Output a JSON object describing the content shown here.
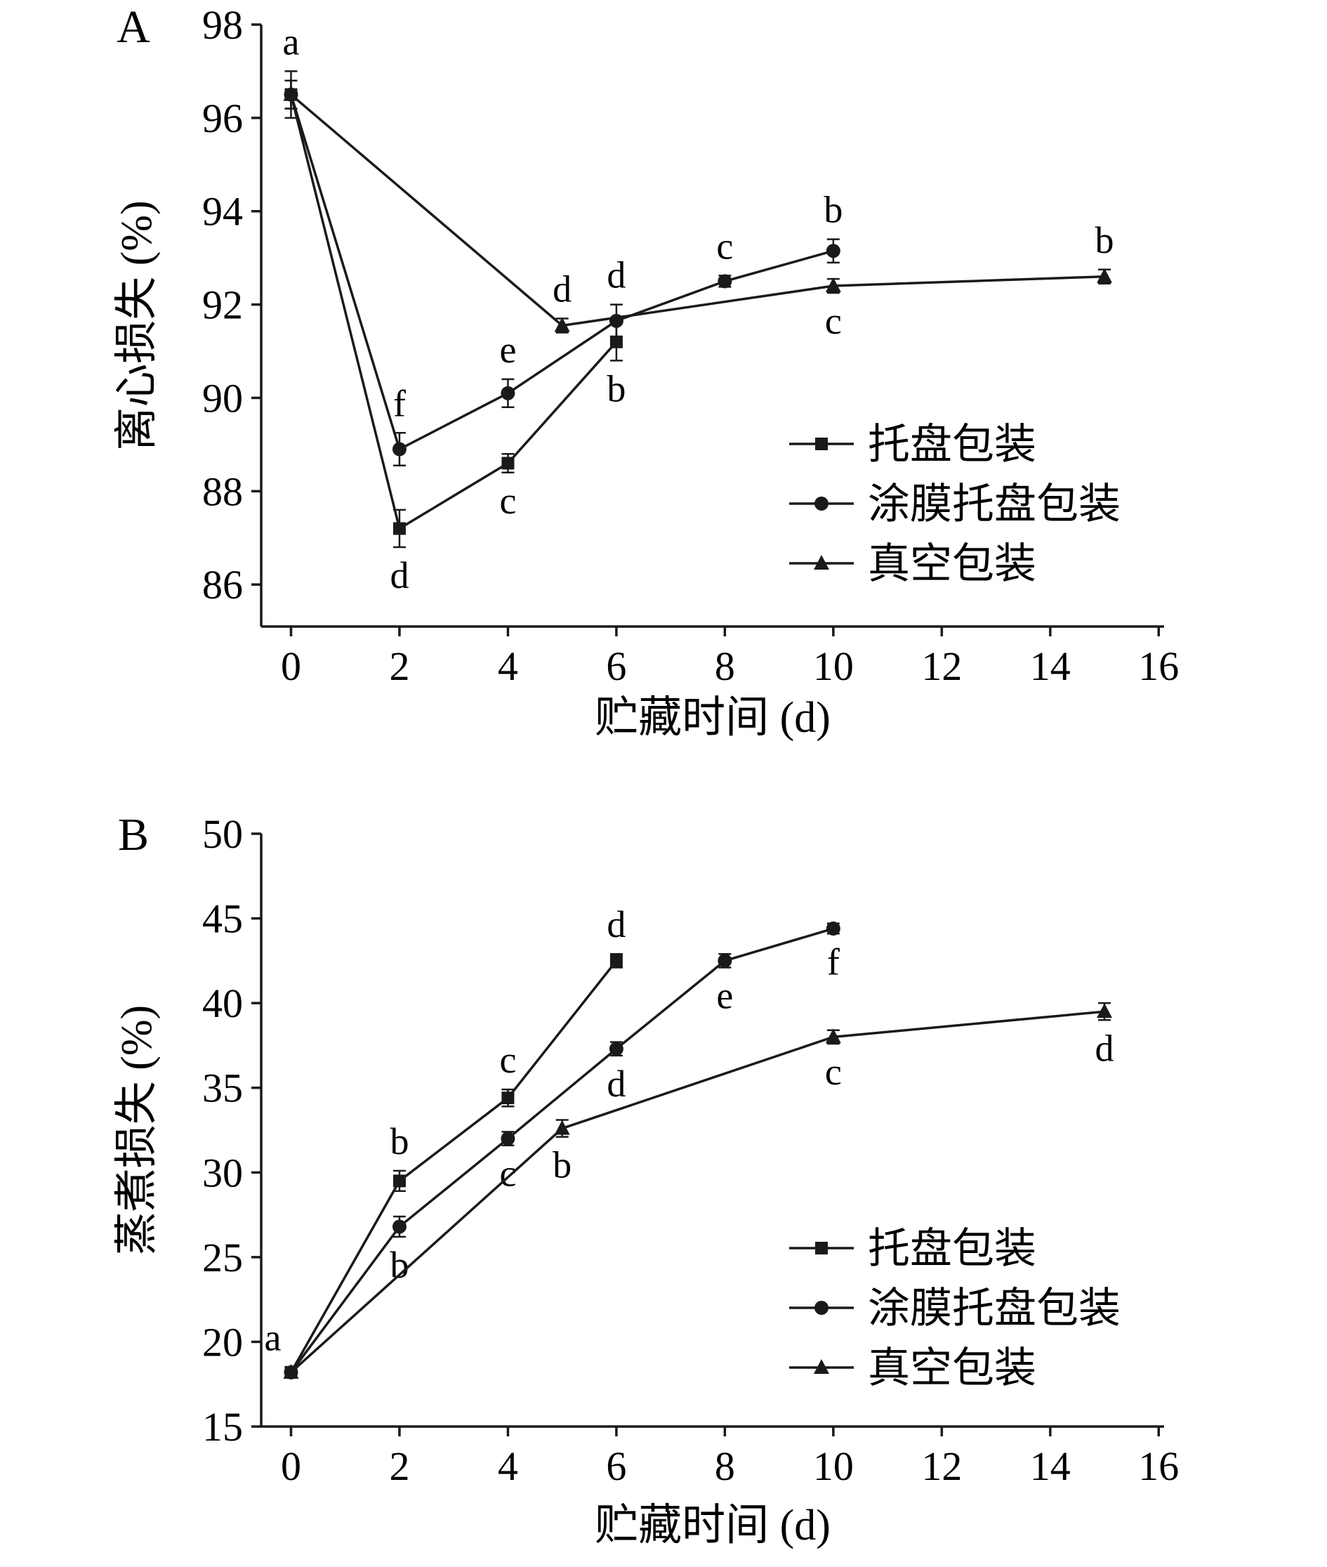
{
  "figure": {
    "background": "#ffffff",
    "ink": "#1a1a1a"
  },
  "chart_data": [
    {
      "type": "line",
      "panel_label": "A",
      "xlabel": "贮藏时间 (d)",
      "ylabel": "离心损失 (%)",
      "xticks": [
        0,
        2,
        4,
        6,
        8,
        10,
        12,
        14,
        16
      ],
      "yticks": [
        86,
        88,
        90,
        92,
        94,
        96,
        98
      ],
      "xlim": [
        -0.55,
        16.1
      ],
      "ylim": [
        85.1,
        98
      ],
      "grid": false,
      "legend_position": "inside-center-right",
      "series": [
        {
          "name": "托盘包装",
          "marker": "square",
          "points": [
            {
              "x": 0,
              "y": 96.5,
              "err": 0.5,
              "label": "a",
              "label_pos": "above"
            },
            {
              "x": 2,
              "y": 87.2,
              "err": 0.4,
              "label": "d",
              "label_pos": "below"
            },
            {
              "x": 4,
              "y": 88.6,
              "err": 0.2,
              "label": "c",
              "label_pos": "below"
            },
            {
              "x": 6,
              "y": 91.2,
              "err": 0.4,
              "label": "b",
              "label_pos": "below"
            }
          ]
        },
        {
          "name": "涂膜托盘包装",
          "marker": "circle",
          "points": [
            {
              "x": 0,
              "y": 96.5,
              "err": 0.3
            },
            {
              "x": 2,
              "y": 88.9,
              "err": 0.35,
              "label": "f",
              "label_pos": "above"
            },
            {
              "x": 4,
              "y": 90.1,
              "err": 0.3,
              "label": "e",
              "label_pos": "above"
            },
            {
              "x": 6,
              "y": 91.65,
              "err": 0.35,
              "label": "d",
              "label_pos": "above"
            },
            {
              "x": 8,
              "y": 92.5,
              "err": 0.12,
              "label": "c",
              "label_pos": "above"
            },
            {
              "x": 10,
              "y": 93.15,
              "err": 0.25,
              "label": "b",
              "label_pos": "above"
            }
          ]
        },
        {
          "name": "真空包装",
          "marker": "triangle",
          "points": [
            {
              "x": 0,
              "y": 96.5,
              "err": 0.3
            },
            {
              "x": 5,
              "y": 91.55,
              "err": 0.15,
              "label": "d",
              "label_pos": "above"
            },
            {
              "x": 10,
              "y": 92.4,
              "err": 0.15,
              "label": "c",
              "label_pos": "below"
            },
            {
              "x": 15,
              "y": 92.6,
              "err": 0.15,
              "label": "b",
              "label_pos": "above"
            }
          ]
        }
      ]
    },
    {
      "type": "line",
      "panel_label": "B",
      "xlabel": "贮藏时间 (d)",
      "ylabel": "蒸煮损失 (%)",
      "xticks": [
        0,
        2,
        4,
        6,
        8,
        10,
        12,
        14,
        16
      ],
      "yticks": [
        15,
        20,
        25,
        30,
        35,
        40,
        45,
        50
      ],
      "xlim": [
        -0.55,
        16.1
      ],
      "ylim": [
        15,
        50
      ],
      "grid": false,
      "legend_position": "inside-center-right",
      "series": [
        {
          "name": "托盘包装",
          "marker": "square",
          "points": [
            {
              "x": 0,
              "y": 18.2,
              "err": 0.3,
              "label": "a",
              "label_pos": "above-left"
            },
            {
              "x": 2,
              "y": 29.5,
              "err": 0.6,
              "label": "b",
              "label_pos": "above"
            },
            {
              "x": 4,
              "y": 34.4,
              "err": 0.5,
              "label": "c",
              "label_pos": "above"
            },
            {
              "x": 6,
              "y": 42.5,
              "err": 0.4,
              "label": "d",
              "label_pos": "above"
            }
          ]
        },
        {
          "name": "涂膜托盘包装",
          "marker": "circle",
          "points": [
            {
              "x": 0,
              "y": 18.2,
              "err": 0.3
            },
            {
              "x": 2,
              "y": 26.8,
              "err": 0.6,
              "label": "b",
              "label_pos": "below"
            },
            {
              "x": 4,
              "y": 32.0,
              "err": 0.4,
              "label": "c",
              "label_pos": "below"
            },
            {
              "x": 6,
              "y": 37.3,
              "err": 0.4,
              "label": "d",
              "label_pos": "below"
            },
            {
              "x": 8,
              "y": 42.5,
              "err": 0.4,
              "label": "e",
              "label_pos": "below"
            },
            {
              "x": 10,
              "y": 44.4,
              "err": 0.3,
              "label": "f",
              "label_pos": "below"
            }
          ]
        },
        {
          "name": "真空包装",
          "marker": "triangle",
          "points": [
            {
              "x": 0,
              "y": 18.2,
              "err": 0.3
            },
            {
              "x": 5,
              "y": 32.6,
              "err": 0.5,
              "label": "b",
              "label_pos": "below"
            },
            {
              "x": 10,
              "y": 38.0,
              "err": 0.4,
              "label": "c",
              "label_pos": "below"
            },
            {
              "x": 15,
              "y": 39.5,
              "err": 0.5,
              "label": "d",
              "label_pos": "below"
            }
          ]
        }
      ]
    }
  ]
}
